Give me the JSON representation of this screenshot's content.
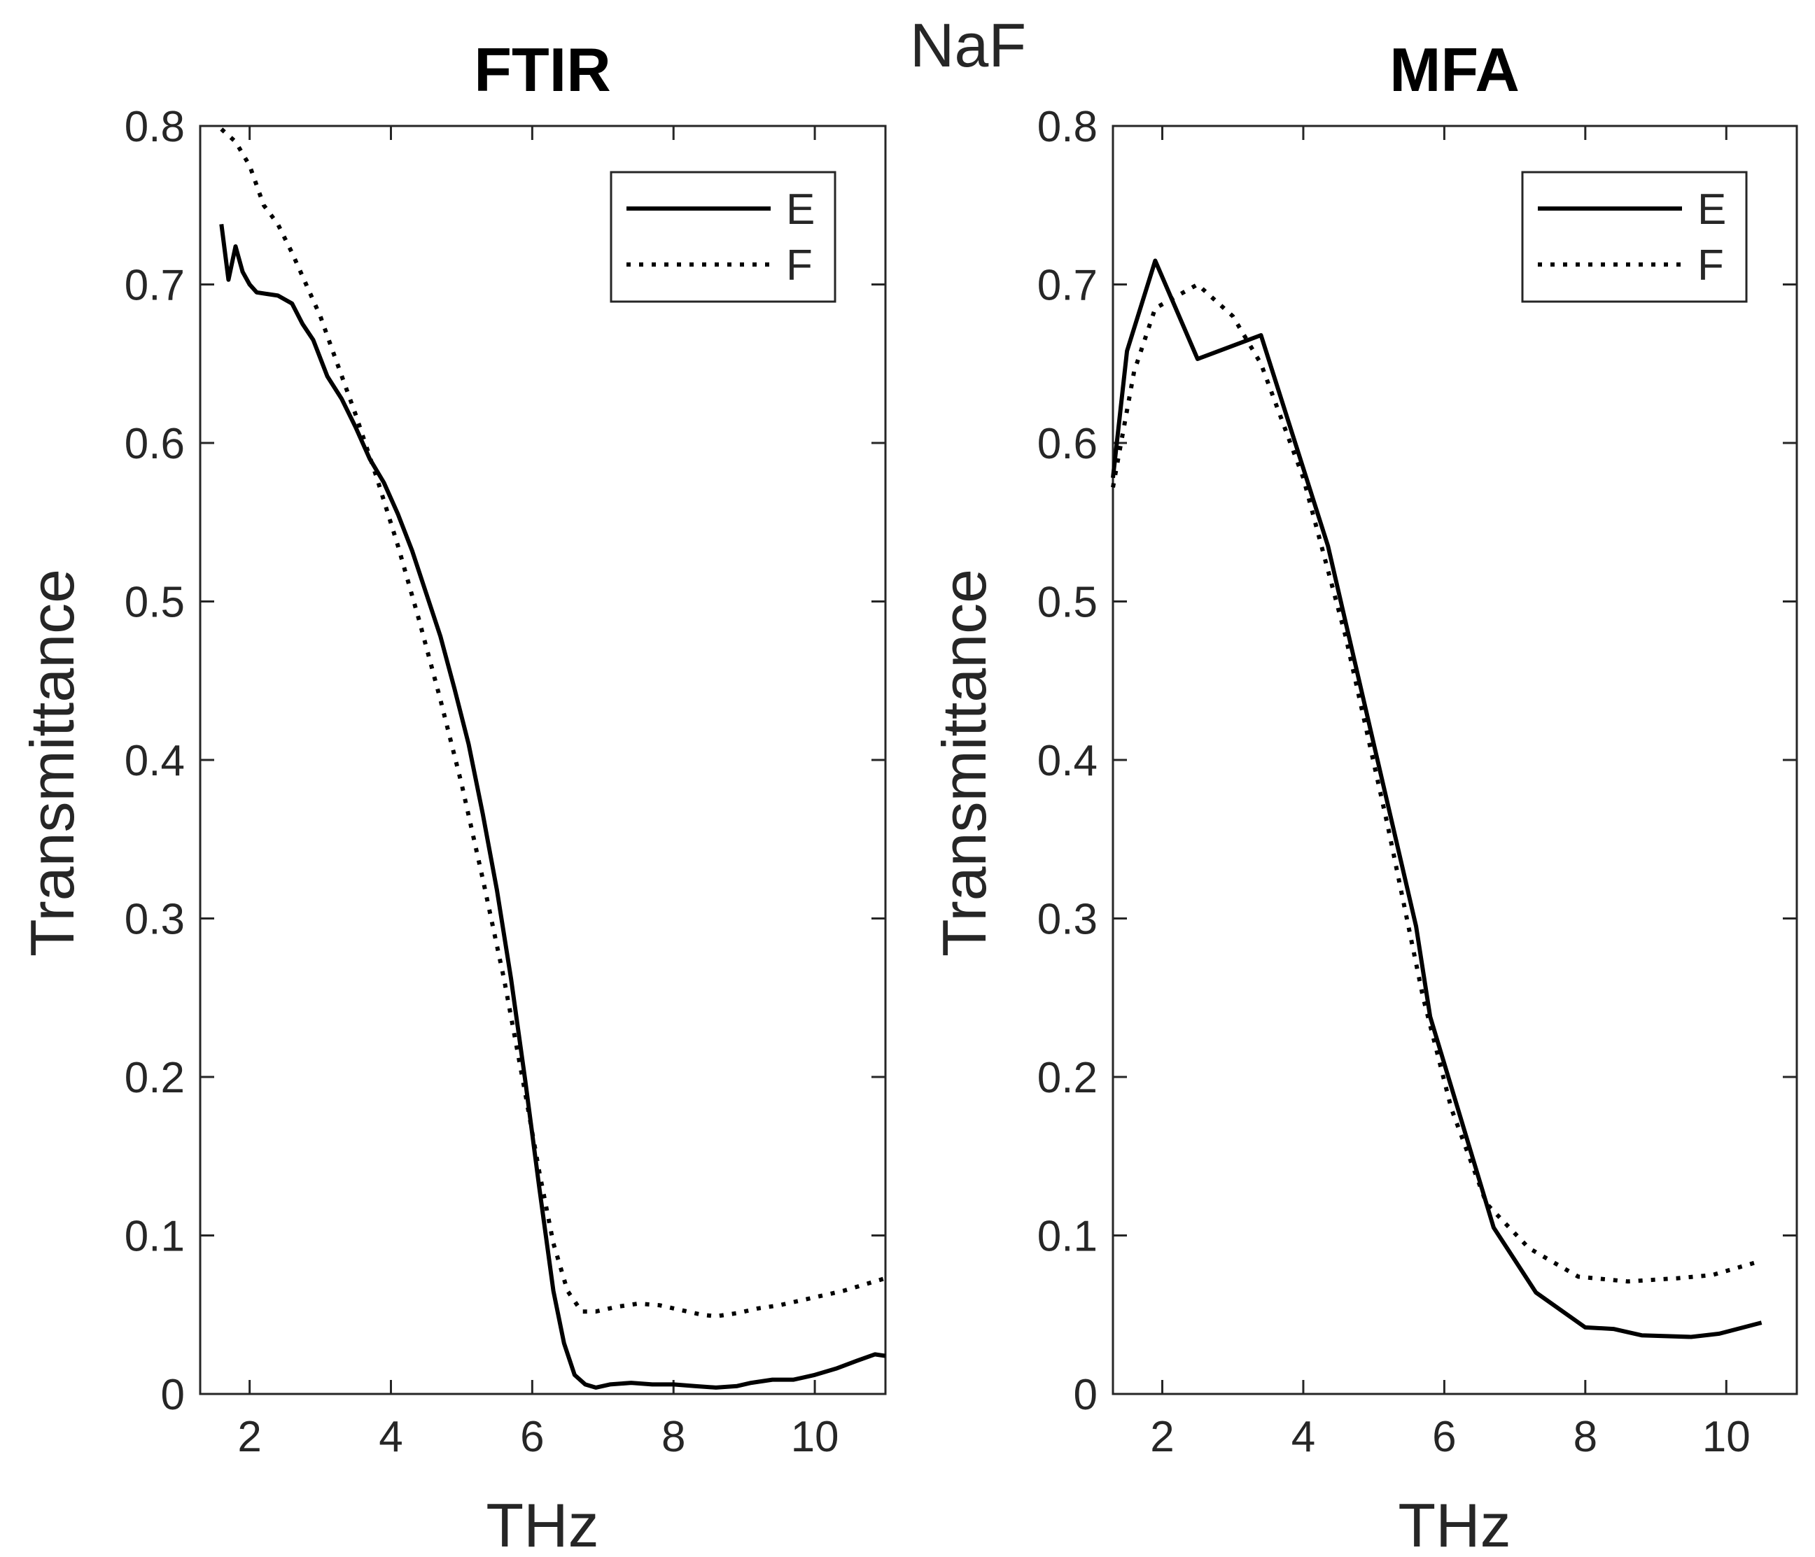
{
  "figure": {
    "suptitle": "NaF"
  },
  "chart_data": [
    {
      "type": "line",
      "title": "FTIR",
      "xlabel": "THz",
      "ylabel": "Transmittance",
      "xlim": [
        1.3,
        11.0
      ],
      "ylim": [
        0,
        0.8
      ],
      "xticks": [
        2,
        4,
        6,
        8,
        10
      ],
      "xtick_labels": [
        "2",
        "4",
        "6",
        "8",
        "10"
      ],
      "yticks": [
        0,
        0.1,
        0.2,
        0.3,
        0.4,
        0.5,
        0.6,
        0.7,
        0.8
      ],
      "ytick_labels": [
        "0",
        "0.1",
        "0.2",
        "0.3",
        "0.4",
        "0.5",
        "0.6",
        "0.7",
        "0.8"
      ],
      "grid": false,
      "legend": "top-right",
      "series": [
        {
          "name": "E",
          "style": "solid",
          "x": [
            1.6,
            1.7,
            1.8,
            1.9,
            2.0,
            2.1,
            2.25,
            2.4,
            2.6,
            2.75,
            2.9,
            3.1,
            3.3,
            3.5,
            3.7,
            3.9,
            4.1,
            4.3,
            4.5,
            4.7,
            4.9,
            5.1,
            5.3,
            5.5,
            5.7,
            5.9,
            6.1,
            6.3,
            6.45,
            6.6,
            6.75,
            6.9,
            7.1,
            7.4,
            7.7,
            8.0,
            8.3,
            8.6,
            8.9,
            9.1,
            9.4,
            9.7,
            10.0,
            10.3,
            10.6,
            10.85,
            11.0
          ],
          "y": [
            0.738,
            0.703,
            0.724,
            0.708,
            0.7,
            0.695,
            0.694,
            0.693,
            0.688,
            0.675,
            0.665,
            0.642,
            0.628,
            0.61,
            0.59,
            0.575,
            0.555,
            0.532,
            0.505,
            0.478,
            0.445,
            0.41,
            0.366,
            0.318,
            0.262,
            0.198,
            0.13,
            0.065,
            0.032,
            0.012,
            0.006,
            0.004,
            0.006,
            0.007,
            0.006,
            0.006,
            0.005,
            0.004,
            0.005,
            0.007,
            0.009,
            0.009,
            0.012,
            0.016,
            0.021,
            0.025,
            0.024
          ]
        },
        {
          "name": "F",
          "style": "dotted",
          "x": [
            1.6,
            1.8,
            2.0,
            2.2,
            2.4,
            2.6,
            2.8,
            3.0,
            3.2,
            3.5,
            3.8,
            4.1,
            4.4,
            4.7,
            5.0,
            5.3,
            5.6,
            5.9,
            6.1,
            6.3,
            6.5,
            6.7,
            6.9,
            7.2,
            7.5,
            7.8,
            8.1,
            8.4,
            8.6,
            8.9,
            9.2,
            9.5,
            9.8,
            10.1,
            10.4,
            10.7,
            11.0
          ],
          "y": [
            0.798,
            0.79,
            0.775,
            0.75,
            0.738,
            0.72,
            0.7,
            0.68,
            0.655,
            0.618,
            0.578,
            0.535,
            0.488,
            0.438,
            0.385,
            0.325,
            0.262,
            0.19,
            0.14,
            0.095,
            0.065,
            0.052,
            0.052,
            0.055,
            0.057,
            0.056,
            0.053,
            0.05,
            0.049,
            0.051,
            0.054,
            0.056,
            0.059,
            0.062,
            0.065,
            0.069,
            0.073
          ]
        }
      ]
    },
    {
      "type": "line",
      "title": "MFA",
      "xlabel": "THz",
      "ylabel": "Transmittance",
      "xlim": [
        1.3,
        11.0
      ],
      "ylim": [
        0,
        0.8
      ],
      "xticks": [
        2,
        4,
        6,
        8,
        10
      ],
      "xtick_labels": [
        "2",
        "4",
        "6",
        "8",
        "10"
      ],
      "yticks": [
        0,
        0.1,
        0.2,
        0.3,
        0.4,
        0.5,
        0.6,
        0.7,
        0.8
      ],
      "ytick_labels": [
        "0",
        "0.1",
        "0.2",
        "0.3",
        "0.4",
        "0.5",
        "0.6",
        "0.7",
        "0.8"
      ],
      "grid": false,
      "legend": "top-right",
      "series": [
        {
          "name": "E",
          "style": "solid",
          "x": [
            1.3,
            1.5,
            1.9,
            2.5,
            3.4,
            4.35,
            5.0,
            5.6,
            5.8,
            6.7,
            7.3,
            8.0,
            8.4,
            8.8,
            9.5,
            9.9,
            10.5
          ],
          "y": [
            0.578,
            0.658,
            0.715,
            0.653,
            0.668,
            0.535,
            0.41,
            0.295,
            0.238,
            0.105,
            0.064,
            0.042,
            0.041,
            0.037,
            0.036,
            0.038,
            0.045
          ]
        },
        {
          "name": "F",
          "style": "dotted",
          "x": [
            1.3,
            1.6,
            1.9,
            2.5,
            3.0,
            3.4,
            4.0,
            4.6,
            5.2,
            5.7,
            6.1,
            6.6,
            7.2,
            7.9,
            8.6,
            9.3,
            9.8,
            10.5
          ],
          "y": [
            0.572,
            0.645,
            0.685,
            0.7,
            0.68,
            0.65,
            0.578,
            0.478,
            0.358,
            0.25,
            0.18,
            0.12,
            0.092,
            0.074,
            0.071,
            0.073,
            0.075,
            0.084
          ]
        }
      ]
    }
  ]
}
